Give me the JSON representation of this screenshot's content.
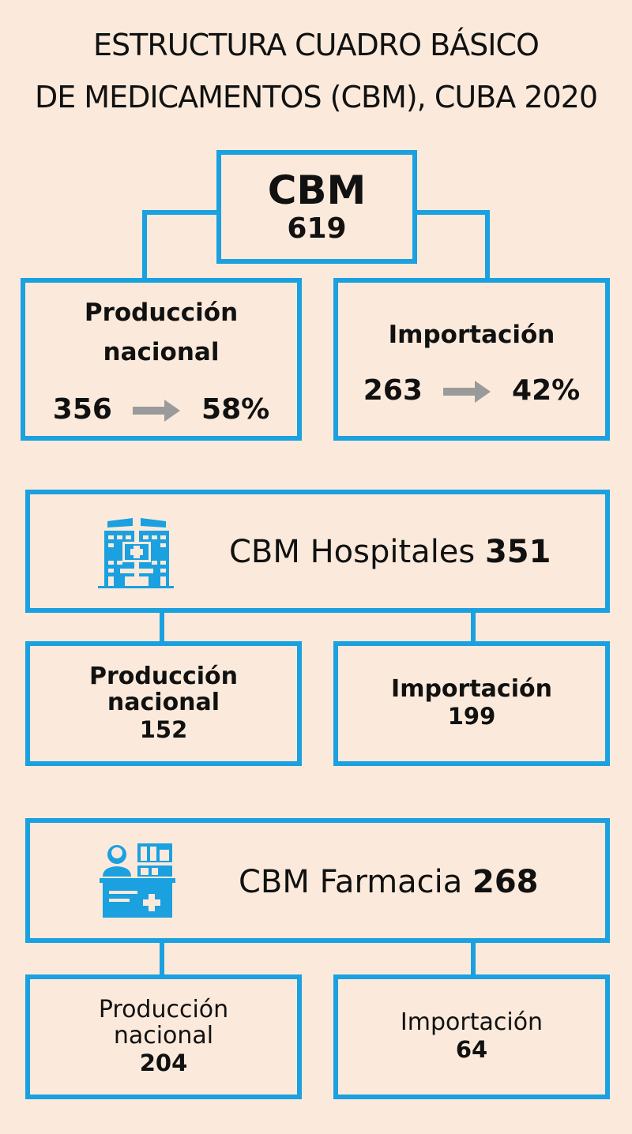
{
  "title": {
    "line1": "ESTRUCTURA CUADRO BÁSICO",
    "line2": "DE MEDICAMENTOS (CBM), CUBA 2020"
  },
  "cbm": {
    "label": "CBM",
    "total": "619"
  },
  "nacional": {
    "label_line1": "Producción",
    "label_line2": "nacional",
    "count": "356",
    "percent": "58%"
  },
  "importacion": {
    "label": "Importación",
    "count": "263",
    "percent": "42%"
  },
  "hospitales": {
    "label": "CBM Hospitales",
    "total": "351",
    "icon": "hospital-building-icon",
    "nacional": {
      "label_line1": "Producción",
      "label_line2": "nacional",
      "count": "152"
    },
    "importacion": {
      "label": "Importación",
      "count": "199"
    }
  },
  "farmacia": {
    "label": "CBM Farmacia",
    "total": "268",
    "icon": "pharmacist-counter-icon",
    "nacional": {
      "label_line1": "Producción",
      "label_line2": "nacional",
      "count": "204"
    },
    "importacion": {
      "label": "Importación",
      "count": "64"
    }
  },
  "colors": {
    "accent": "#1ba0e0",
    "background": "#fbeadb",
    "arrow": "#9a9a9a"
  }
}
